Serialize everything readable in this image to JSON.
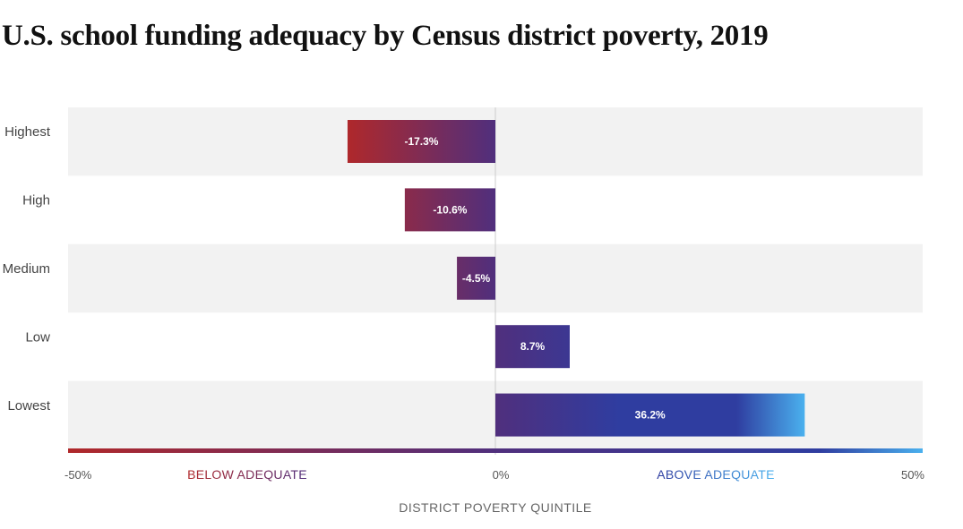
{
  "header": {
    "title": "U.S. school funding adequacy by Census district poverty, 2019"
  },
  "colors": {
    "band": "#f2f2f2",
    "below": "#b0282a",
    "mid": "#502f7d",
    "above": "#2f3da0",
    "above_light": "#4ab0ee",
    "axis_line": "#cccccc"
  },
  "chart_data": {
    "type": "bar",
    "orientation": "horizontal",
    "title": "U.S. school funding adequacy by Census district poverty, 2019",
    "categories": [
      "Highest",
      "High",
      "Medium",
      "Low",
      "Lowest"
    ],
    "values": [
      -17.3,
      -10.6,
      -4.5,
      8.7,
      36.2
    ],
    "value_labels": [
      "-17.3%",
      "-10.6%",
      "-4.5%",
      "8.7%",
      "36.2%"
    ],
    "xlim": [
      -50,
      50
    ],
    "x_ticks": [
      {
        "value": -50,
        "label": "-50%"
      },
      {
        "value": 0,
        "label": "0%"
      },
      {
        "value": 50,
        "label": "50%"
      }
    ],
    "xlabel": "DISTRICT POVERTY QUINTILE",
    "zone_labels": {
      "below": "BELOW ADEQUATE",
      "above": "ABOVE ADEQUATE"
    },
    "grid": false
  }
}
